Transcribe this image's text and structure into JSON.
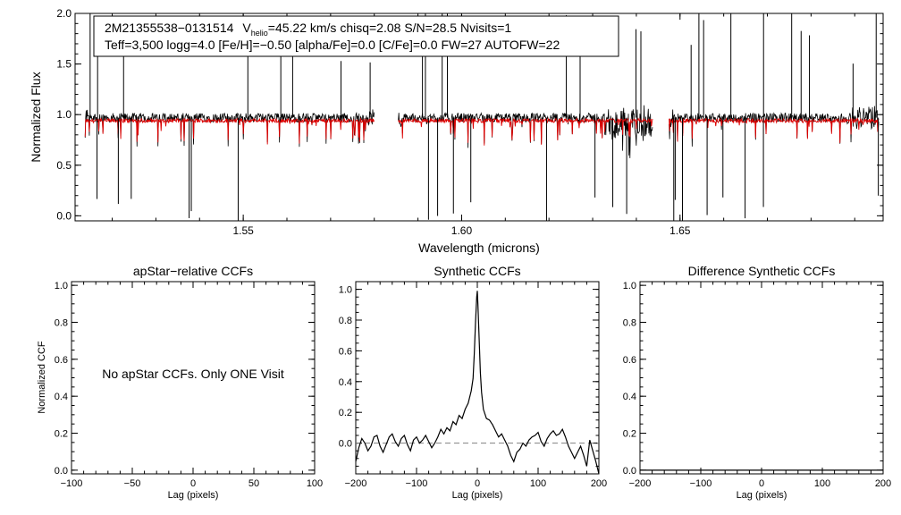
{
  "colors": {
    "observed": "#000000",
    "model": "#dd0000",
    "axis": "#000000",
    "background": "#ffffff",
    "zero_line": "#808080"
  },
  "top_panel": {
    "info_line1_star": "2M21355538−0131514",
    "info_vhelio_v": "V",
    "info_vhelio_sub": "helio",
    "info_vhelio_rest": "=45.22 km/s  chisq=2.08  S/N=28.5  Nvisits=1",
    "info_line2": "Teff=3,500 logg=4.0 [Fe/H]=−0.50 [alpha/Fe]=0.0 [C/Fe]=0.0 FW=27 AUTOFW=22",
    "xlabel": "Wavelength (microns)",
    "ylabel": "Normalized Flux"
  },
  "panel_titles": {
    "apstar": "apStar−relative CCFs",
    "synthetic": "Synthetic CCFs",
    "difference": "Difference Synthetic CCFs"
  },
  "apstar_message": "No apStar CCFs.  Only ONE Visit",
  "ccf_xlabel": "Lag (pixels)",
  "ccf_ylabel": "Normalized CCF",
  "chart_data": [
    {
      "id": "spectrum",
      "type": "line",
      "title": "",
      "xlabel": "Wavelength (microns)",
      "ylabel": "Normalized Flux",
      "xlim": [
        1.5115,
        1.6965
      ],
      "ylim": [
        -0.05,
        2.0
      ],
      "xticks": [
        1.55,
        1.6,
        1.65
      ],
      "xtick_labels": [
        "1.55",
        "1.60",
        "1.65"
      ],
      "yticks": [
        0.0,
        0.5,
        1.0,
        1.5,
        2.0
      ],
      "ytick_labels": [
        "0.0",
        "0.5",
        "1.0",
        "1.5",
        "2.0"
      ],
      "detector_ranges": [
        [
          1.5138,
          1.58
        ],
        [
          1.5855,
          1.6437
        ],
        [
          1.6475,
          1.6955
        ]
      ],
      "series": [
        {
          "name": "observed",
          "color": "#000000",
          "continuum": 0.97,
          "noise": 0.045
        },
        {
          "name": "model",
          "color": "#dd0000",
          "continuum": 0.94,
          "noise": 0.02
        }
      ]
    },
    {
      "id": "apstar_ccf",
      "type": "line",
      "title": "apStar−relative CCFs",
      "xlabel": "Lag (pixels)",
      "ylabel": "Normalized CCF",
      "xlim": [
        -100,
        100
      ],
      "ylim": [
        -0.02,
        1.02
      ],
      "xticks": [
        -100,
        -50,
        0,
        50,
        100
      ],
      "xtick_labels": [
        "−100",
        "−50",
        "0",
        "50",
        "100"
      ],
      "yticks": [
        0.0,
        0.2,
        0.4,
        0.6,
        0.8,
        1.0
      ],
      "ytick_labels": [
        "0.0",
        "0.2",
        "0.4",
        "0.6",
        "0.8",
        "1.0"
      ],
      "series": []
    },
    {
      "id": "synthetic_ccf",
      "type": "line",
      "title": "Synthetic CCFs",
      "xlabel": "Lag (pixels)",
      "ylabel": "",
      "xlim": [
        -200,
        200
      ],
      "ylim": [
        -0.2,
        1.05
      ],
      "xticks": [
        -200,
        -100,
        0,
        100,
        200
      ],
      "xtick_labels": [
        "−200",
        "−100",
        "0",
        "100",
        "200"
      ],
      "yticks": [
        0.0,
        0.2,
        0.4,
        0.6,
        0.8,
        1.0
      ],
      "ytick_labels": [
        "0.0",
        "0.2",
        "0.4",
        "0.6",
        "0.8",
        "1.0"
      ],
      "zero_line": 0.0,
      "series": [
        {
          "name": "ccf",
          "color": "#000000",
          "x": [
            -200,
            -195,
            -190,
            -185,
            -180,
            -175,
            -170,
            -165,
            -160,
            -155,
            -150,
            -145,
            -140,
            -135,
            -130,
            -125,
            -120,
            -115,
            -110,
            -105,
            -100,
            -95,
            -90,
            -85,
            -80,
            -75,
            -70,
            -65,
            -60,
            -55,
            -50,
            -45,
            -40,
            -35,
            -30,
            -25,
            -20,
            -15,
            -10,
            -7,
            -5,
            -3,
            -1,
            0,
            1,
            3,
            5,
            7,
            10,
            15,
            20,
            25,
            30,
            35,
            40,
            45,
            50,
            55,
            60,
            65,
            70,
            75,
            80,
            85,
            90,
            95,
            100,
            105,
            110,
            115,
            120,
            125,
            130,
            135,
            140,
            145,
            150,
            155,
            160,
            165,
            170,
            175,
            180,
            185,
            190,
            195,
            200
          ],
          "y": [
            -0.12,
            -0.03,
            0.03,
            0.0,
            -0.05,
            -0.02,
            0.04,
            0.05,
            -0.02,
            -0.06,
            -0.01,
            0.04,
            0.06,
            0.01,
            -0.02,
            0.03,
            0.05,
            -0.01,
            -0.05,
            0.02,
            0.04,
            0.0,
            0.02,
            0.05,
            0.01,
            -0.03,
            0.0,
            0.04,
            0.09,
            0.06,
            0.1,
            0.08,
            0.14,
            0.12,
            0.18,
            0.16,
            0.22,
            0.26,
            0.34,
            0.42,
            0.58,
            0.78,
            0.95,
            0.99,
            0.9,
            0.68,
            0.46,
            0.33,
            0.22,
            0.16,
            0.15,
            0.12,
            0.08,
            0.04,
            0.06,
            0.02,
            -0.02,
            -0.08,
            -0.12,
            -0.06,
            -0.04,
            0.0,
            -0.02,
            0.02,
            0.04,
            0.05,
            0.07,
            0.01,
            -0.02,
            0.03,
            0.06,
            0.08,
            0.05,
            0.06,
            0.09,
            0.04,
            -0.02,
            -0.06,
            -0.1,
            -0.06,
            -0.02,
            -0.08,
            -0.15,
            0.02,
            -0.05,
            -0.12,
            -0.2
          ]
        }
      ]
    },
    {
      "id": "difference_ccf",
      "type": "line",
      "title": "Difference Synthetic CCFs",
      "xlabel": "Lag (pixels)",
      "ylabel": "",
      "xlim": [
        -200,
        200
      ],
      "ylim": [
        -0.02,
        1.02
      ],
      "xticks": [
        -200,
        -100,
        0,
        100,
        200
      ],
      "xtick_labels": [
        "−200",
        "−100",
        "0",
        "100",
        "200"
      ],
      "yticks": [
        0.0,
        0.2,
        0.4,
        0.6,
        0.8,
        1.0
      ],
      "ytick_labels": [
        "0.0",
        "0.2",
        "0.4",
        "0.6",
        "0.8",
        "1.0"
      ],
      "series": [
        {
          "name": "difference",
          "color": "#000000",
          "x": [
            -200,
            200
          ],
          "y": [
            0.0,
            0.0
          ]
        }
      ]
    }
  ]
}
